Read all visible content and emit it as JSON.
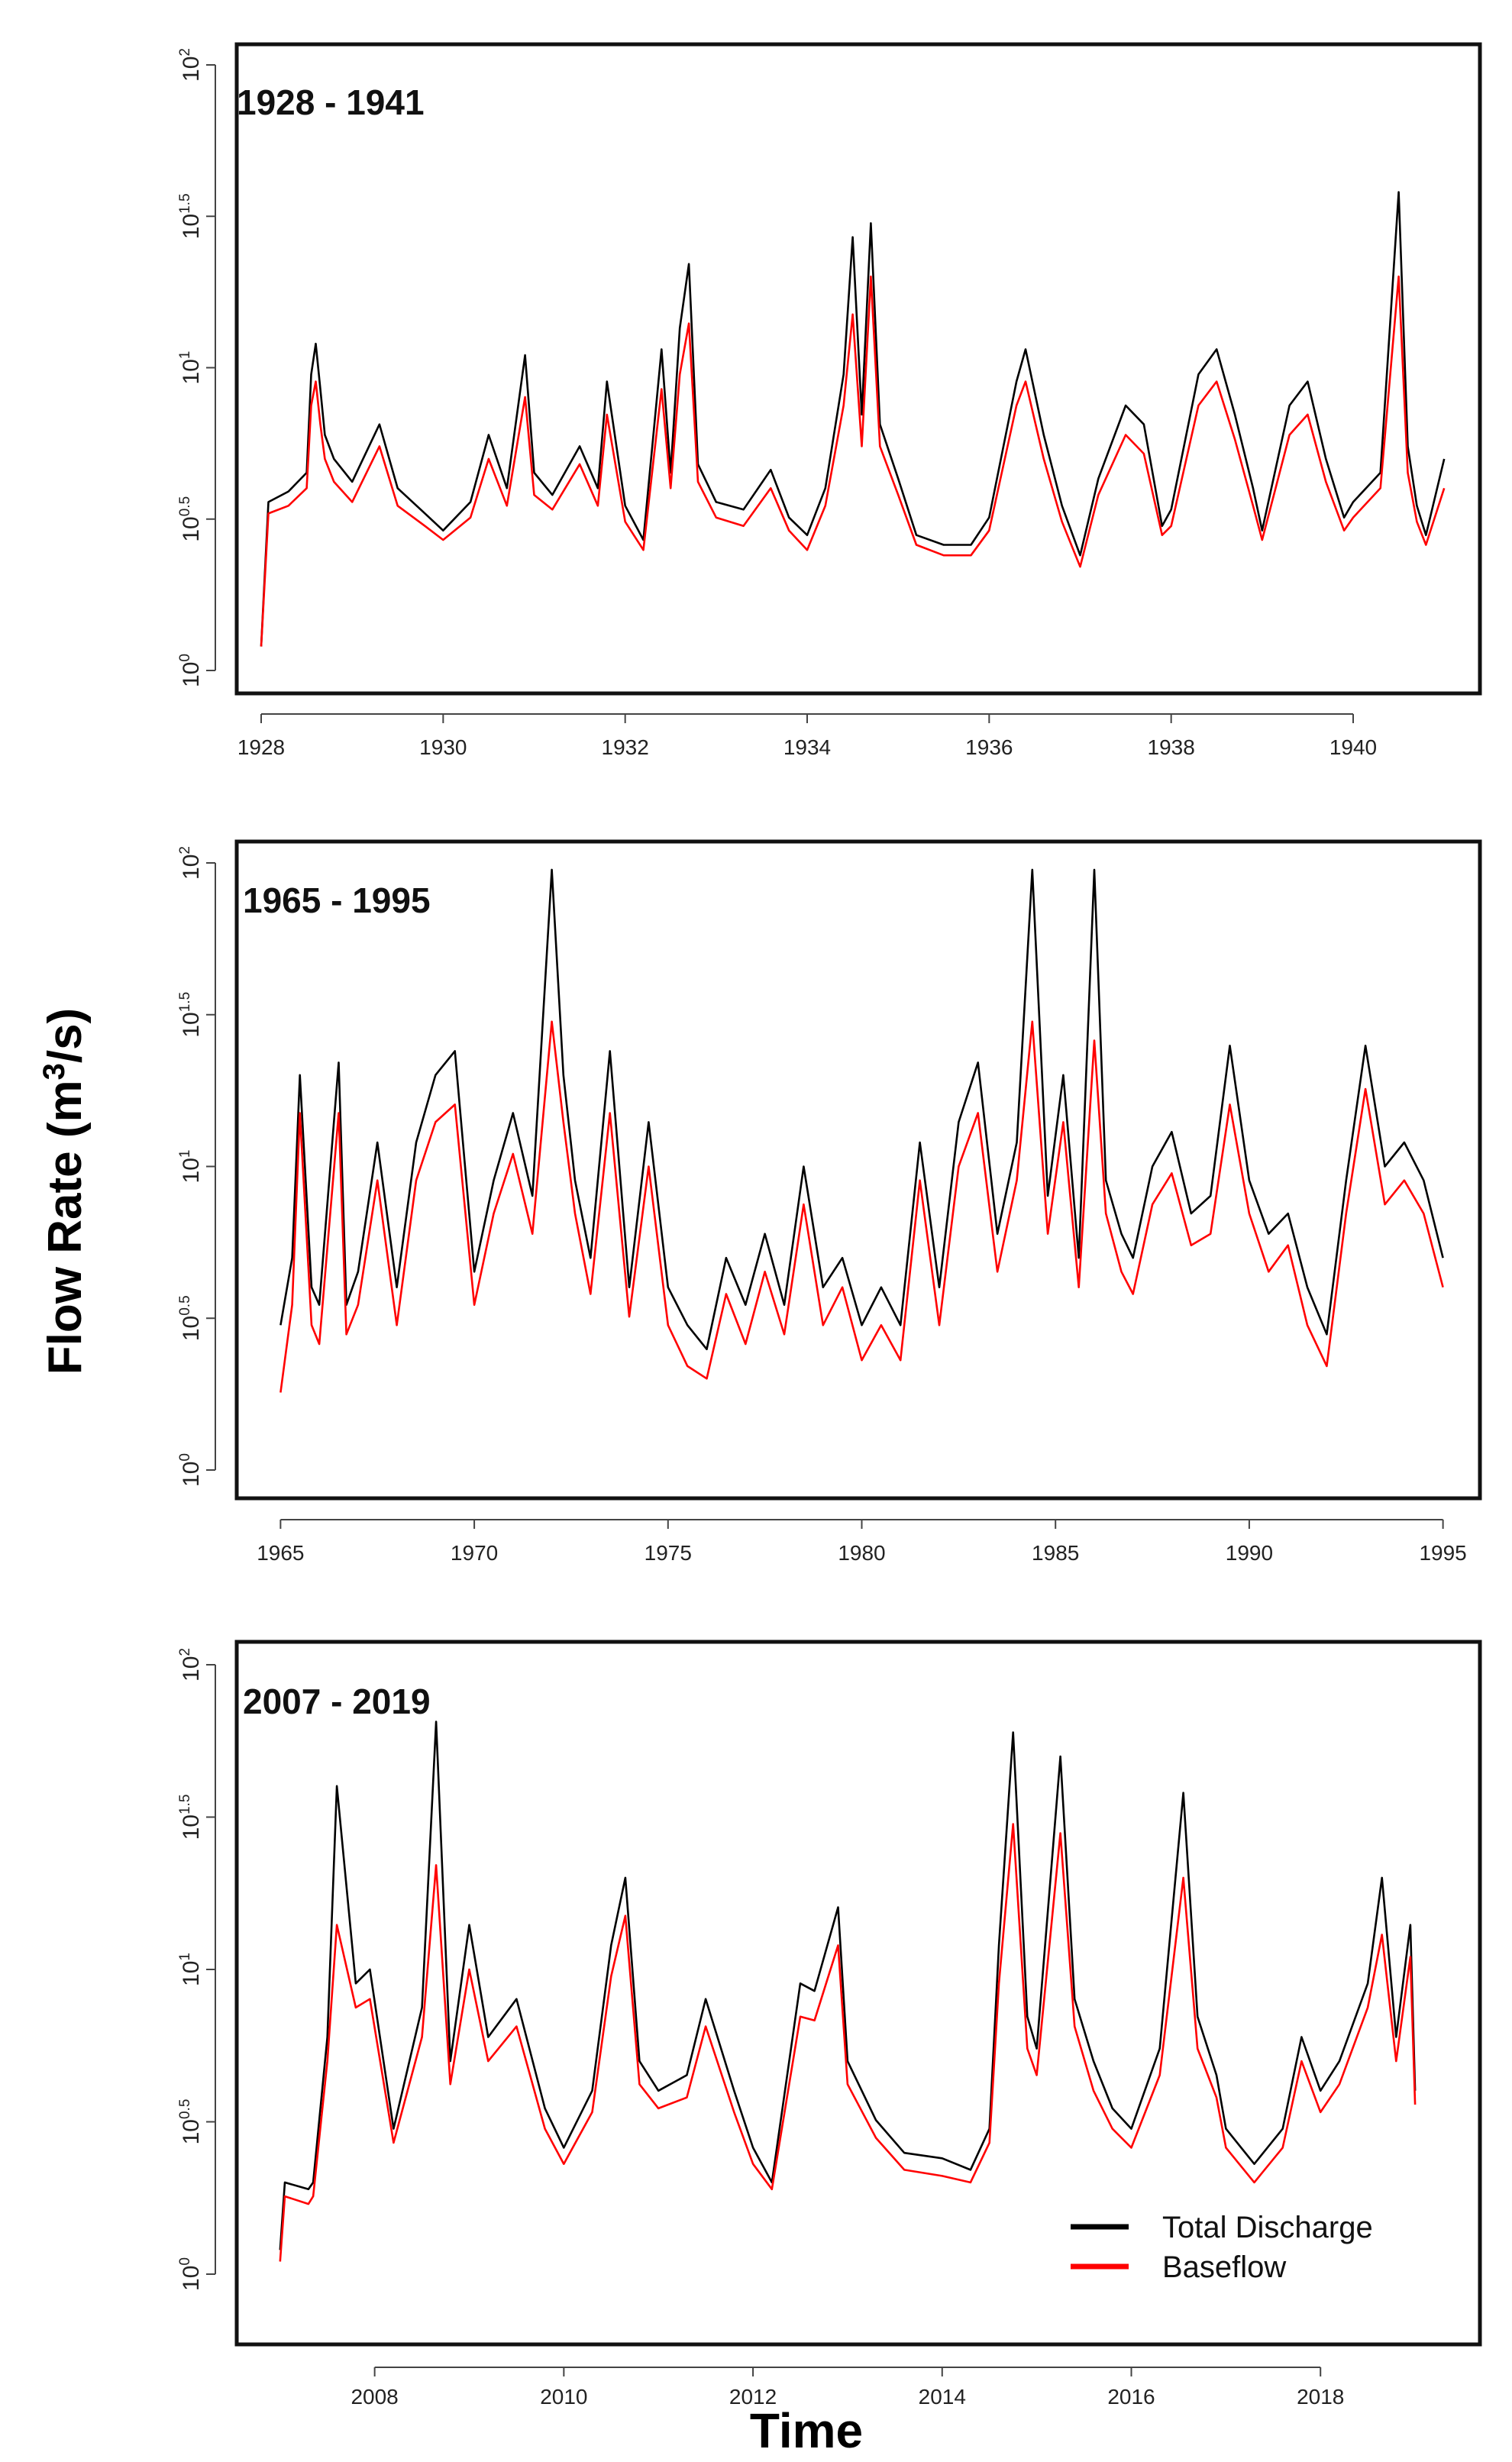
{
  "figure": {
    "ylabel_base": "Flow Rate (m",
    "ylabel_sup": "3",
    "ylabel_tail": "/s)",
    "xlabel": "Time"
  },
  "legend": {
    "items": [
      {
        "label": "Total Discharge",
        "color": "#000000"
      },
      {
        "label": "Baseflow",
        "color": "#ff0000"
      }
    ]
  },
  "chart_data": [
    {
      "type": "line",
      "title": "1928 - 1941",
      "xlabel": "",
      "ylabel": "Flow Rate (m3/s)",
      "yscale": "log10",
      "xlim": [
        1928,
        1941.2
      ],
      "ylim_log10": [
        0,
        2
      ],
      "xticks": [
        1928,
        1930,
        1932,
        1934,
        1936,
        1938,
        1940
      ],
      "yticks": [
        {
          "base": "10",
          "exp": "0"
        },
        {
          "base": "10",
          "exp": "0.5"
        },
        {
          "base": "10",
          "exp": "1"
        },
        {
          "base": "10",
          "exp": "1.5"
        },
        {
          "base": "10",
          "exp": "2"
        }
      ],
      "series": [
        {
          "name": "Total Discharge",
          "color": "#000000",
          "x": [
            1928.0,
            1928.08,
            1928.3,
            1928.5,
            1928.55,
            1928.6,
            1928.65,
            1928.7,
            1928.8,
            1929.0,
            1929.3,
            1929.5,
            1929.8,
            1930.0,
            1930.3,
            1930.5,
            1930.7,
            1930.9,
            1931.0,
            1931.2,
            1931.5,
            1931.7,
            1931.8,
            1932.0,
            1932.2,
            1932.4,
            1932.5,
            1932.6,
            1932.7,
            1932.8,
            1933.0,
            1933.3,
            1933.6,
            1933.8,
            1934.0,
            1934.2,
            1934.4,
            1934.5,
            1934.6,
            1934.7,
            1934.8,
            1935.0,
            1935.2,
            1935.5,
            1935.8,
            1936.0,
            1936.3,
            1936.4,
            1936.6,
            1936.8,
            1937.0,
            1937.2,
            1937.5,
            1937.7,
            1937.9,
            1938.0,
            1938.3,
            1938.5,
            1938.7,
            1938.9,
            1939.0,
            1939.3,
            1939.5,
            1939.7,
            1939.9,
            1940.0,
            1940.3,
            1940.5,
            1940.6,
            1940.7,
            1940.8,
            1941.0
          ],
          "y": [
            1.2,
            3.6,
            3.9,
            4.5,
            9.5,
            12.0,
            8.5,
            6.0,
            5.0,
            4.2,
            6.5,
            4.0,
            3.3,
            2.9,
            3.6,
            6.0,
            4.0,
            11.0,
            4.5,
            3.8,
            5.5,
            4.0,
            9.0,
            3.5,
            2.7,
            11.5,
            4.5,
            13.5,
            22.0,
            4.8,
            3.6,
            3.4,
            4.6,
            3.2,
            2.8,
            4.0,
            9.5,
            27.0,
            7.0,
            30.0,
            6.5,
            4.3,
            2.8,
            2.6,
            2.6,
            3.2,
            9.0,
            11.5,
            6.0,
            3.5,
            2.4,
            4.3,
            7.5,
            6.5,
            3.0,
            3.4,
            9.5,
            11.5,
            7.0,
            4.0,
            2.9,
            7.5,
            9.0,
            5.0,
            3.2,
            3.6,
            4.5,
            38.0,
            5.5,
            3.5,
            2.8,
            5.0
          ]
        },
        {
          "name": "Baseflow",
          "color": "#ff0000",
          "x": [
            1928.0,
            1928.08,
            1928.3,
            1928.5,
            1928.55,
            1928.6,
            1928.65,
            1928.7,
            1928.8,
            1929.0,
            1929.3,
            1929.5,
            1929.8,
            1930.0,
            1930.3,
            1930.5,
            1930.7,
            1930.9,
            1931.0,
            1931.2,
            1931.5,
            1931.7,
            1931.8,
            1932.0,
            1932.2,
            1932.4,
            1932.5,
            1932.6,
            1932.7,
            1932.8,
            1933.0,
            1933.3,
            1933.6,
            1933.8,
            1934.0,
            1934.2,
            1934.4,
            1934.5,
            1934.6,
            1934.7,
            1934.8,
            1935.0,
            1935.2,
            1935.5,
            1935.8,
            1936.0,
            1936.3,
            1936.4,
            1936.6,
            1936.8,
            1937.0,
            1937.2,
            1937.5,
            1937.7,
            1937.9,
            1938.0,
            1938.3,
            1938.5,
            1938.7,
            1938.9,
            1939.0,
            1939.3,
            1939.5,
            1939.7,
            1939.9,
            1940.0,
            1940.3,
            1940.5,
            1940.6,
            1940.7,
            1940.8,
            1941.0
          ],
          "y": [
            1.2,
            3.3,
            3.5,
            4.0,
            7.5,
            9.0,
            6.5,
            5.0,
            4.2,
            3.6,
            5.5,
            3.5,
            3.0,
            2.7,
            3.2,
            5.0,
            3.5,
            8.0,
            3.8,
            3.4,
            4.8,
            3.5,
            7.0,
            3.1,
            2.5,
            8.5,
            4.0,
            9.5,
            14.0,
            4.2,
            3.2,
            3.0,
            4.0,
            2.9,
            2.5,
            3.5,
            7.5,
            15.0,
            5.5,
            20.0,
            5.5,
            3.8,
            2.6,
            2.4,
            2.4,
            2.9,
            7.5,
            9.0,
            5.0,
            3.1,
            2.2,
            3.8,
            6.0,
            5.2,
            2.8,
            3.0,
            7.5,
            9.0,
            5.8,
            3.5,
            2.7,
            6.0,
            7.0,
            4.2,
            2.9,
            3.2,
            4.0,
            20.0,
            4.5,
            3.1,
            2.6,
            4.0
          ]
        }
      ]
    },
    {
      "type": "line",
      "title": "1965 - 1995",
      "xlabel": "",
      "ylabel": "Flow Rate (m3/s)",
      "yscale": "log10",
      "xlim": [
        1964.5,
        1995.5
      ],
      "ylim_log10": [
        0,
        2
      ],
      "xticks": [
        1965,
        1970,
        1975,
        1980,
        1985,
        1990,
        1995
      ],
      "yticks": [
        {
          "base": "10",
          "exp": "0"
        },
        {
          "base": "10",
          "exp": "0.5"
        },
        {
          "base": "10",
          "exp": "1"
        },
        {
          "base": "10",
          "exp": "1.5"
        },
        {
          "base": "10",
          "exp": "2"
        }
      ],
      "series": [
        {
          "name": "Total Discharge",
          "color": "#000000",
          "x": [
            1965.0,
            1965.3,
            1965.5,
            1965.8,
            1966.0,
            1966.5,
            1966.7,
            1967.0,
            1967.5,
            1968.0,
            1968.5,
            1969.0,
            1969.5,
            1970.0,
            1970.5,
            1971.0,
            1971.5,
            1972.0,
            1972.3,
            1972.6,
            1973.0,
            1973.5,
            1974.0,
            1974.5,
            1975.0,
            1975.5,
            1976.0,
            1976.5,
            1977.0,
            1977.5,
            1978.0,
            1978.5,
            1979.0,
            1979.5,
            1980.0,
            1980.5,
            1981.0,
            1981.5,
            1982.0,
            1982.5,
            1983.0,
            1983.5,
            1984.0,
            1984.4,
            1984.8,
            1985.2,
            1985.6,
            1986.0,
            1986.3,
            1986.7,
            1987.0,
            1987.5,
            1988.0,
            1988.5,
            1989.0,
            1989.5,
            1990.0,
            1990.5,
            1991.0,
            1991.5,
            1992.0,
            1992.5,
            1993.0,
            1993.5,
            1994.0,
            1994.5,
            1995.0
          ],
          "y": [
            3.0,
            5.0,
            20.0,
            4.0,
            3.5,
            22.0,
            3.5,
            4.5,
            12.0,
            4.0,
            12.0,
            20.0,
            24.0,
            4.5,
            9.0,
            15.0,
            8.0,
            95.0,
            20.0,
            9.0,
            5.0,
            24.0,
            4.0,
            14.0,
            4.0,
            3.0,
            2.5,
            5.0,
            3.5,
            6.0,
            3.5,
            10.0,
            4.0,
            5.0,
            3.0,
            4.0,
            3.0,
            12.0,
            4.0,
            14.0,
            22.0,
            6.0,
            12.0,
            95.0,
            8.0,
            20.0,
            5.0,
            95.0,
            9.0,
            6.0,
            5.0,
            10.0,
            13.0,
            7.0,
            8.0,
            25.0,
            9.0,
            6.0,
            7.0,
            4.0,
            2.8,
            9.0,
            25.0,
            10.0,
            12.0,
            9.0,
            5.0
          ]
        },
        {
          "name": "Baseflow",
          "color": "#ff0000",
          "x": [
            1965.0,
            1965.3,
            1965.5,
            1965.8,
            1966.0,
            1966.5,
            1966.7,
            1967.0,
            1967.5,
            1968.0,
            1968.5,
            1969.0,
            1969.5,
            1970.0,
            1970.5,
            1971.0,
            1971.5,
            1972.0,
            1972.3,
            1972.6,
            1973.0,
            1973.5,
            1974.0,
            1974.5,
            1975.0,
            1975.5,
            1976.0,
            1976.5,
            1977.0,
            1977.5,
            1978.0,
            1978.5,
            1979.0,
            1979.5,
            1980.0,
            1980.5,
            1981.0,
            1981.5,
            1982.0,
            1982.5,
            1983.0,
            1983.5,
            1984.0,
            1984.4,
            1984.8,
            1985.2,
            1985.6,
            1986.0,
            1986.3,
            1986.7,
            1987.0,
            1987.5,
            1988.0,
            1988.5,
            1989.0,
            1989.5,
            1990.0,
            1990.5,
            1991.0,
            1991.5,
            1992.0,
            1992.5,
            1993.0,
            1993.5,
            1994.0,
            1994.5,
            1995.0
          ],
          "y": [
            1.8,
            3.5,
            15.0,
            3.0,
            2.6,
            15.0,
            2.8,
            3.5,
            9.0,
            3.0,
            9.0,
            14.0,
            16.0,
            3.5,
            7.0,
            11.0,
            6.0,
            30.0,
            14.0,
            7.0,
            3.8,
            15.0,
            3.2,
            10.0,
            3.0,
            2.2,
            2.0,
            3.8,
            2.6,
            4.5,
            2.8,
            7.5,
            3.0,
            4.0,
            2.3,
            3.0,
            2.3,
            9.0,
            3.0,
            10.0,
            15.0,
            4.5,
            9.0,
            30.0,
            6.0,
            14.0,
            4.0,
            26.0,
            7.0,
            4.5,
            3.8,
            7.5,
            9.5,
            5.5,
            6.0,
            16.0,
            7.0,
            4.5,
            5.5,
            3.0,
            2.2,
            7.0,
            18.0,
            7.5,
            9.0,
            7.0,
            4.0
          ]
        }
      ]
    },
    {
      "type": "line",
      "title": "2007 - 2019",
      "xlabel": "",
      "ylabel": "Flow Rate (m3/s)",
      "yscale": "log10",
      "xlim": [
        2006.8,
        2019.5
      ],
      "ylim_log10": [
        0,
        2
      ],
      "xticks": [
        2008,
        2010,
        2012,
        2014,
        2016,
        2018
      ],
      "yticks": [
        {
          "base": "10",
          "exp": "0"
        },
        {
          "base": "10",
          "exp": "0.5"
        },
        {
          "base": "10",
          "exp": "1"
        },
        {
          "base": "10",
          "exp": "1.5"
        },
        {
          "base": "10",
          "exp": "2"
        }
      ],
      "series": [
        {
          "name": "Total Discharge",
          "color": "#000000",
          "x": [
            2007.0,
            2007.05,
            2007.3,
            2007.35,
            2007.5,
            2007.6,
            2007.8,
            2007.95,
            2008.2,
            2008.5,
            2008.65,
            2008.8,
            2009.0,
            2009.2,
            2009.5,
            2009.8,
            2010.0,
            2010.3,
            2010.5,
            2010.65,
            2010.8,
            2011.0,
            2011.3,
            2011.5,
            2011.8,
            2012.0,
            2012.2,
            2012.5,
            2012.65,
            2012.9,
            2013.0,
            2013.3,
            2013.6,
            2014.0,
            2014.3,
            2014.5,
            2014.6,
            2014.75,
            2014.9,
            2015.0,
            2015.25,
            2015.4,
            2015.6,
            2015.8,
            2016.0,
            2016.3,
            2016.55,
            2016.7,
            2016.9,
            2017.0,
            2017.3,
            2017.6,
            2017.8,
            2018.0,
            2018.2,
            2018.5,
            2018.65,
            2018.8,
            2018.95,
            2019.0
          ],
          "y": [
            1.2,
            2.0,
            1.9,
            2.0,
            6.0,
            40.0,
            9.0,
            10.0,
            3.0,
            7.5,
            65.0,
            5.0,
            14.0,
            6.0,
            8.0,
            3.5,
            2.6,
            4.0,
            12.0,
            20.0,
            5.0,
            4.0,
            4.5,
            8.0,
            4.0,
            2.6,
            2.0,
            9.0,
            8.5,
            16.0,
            5.0,
            3.2,
            2.5,
            2.4,
            2.2,
            3.0,
            12.0,
            60.0,
            7.0,
            5.5,
            50.0,
            8.0,
            5.0,
            3.5,
            3.0,
            5.5,
            38.0,
            7.0,
            4.5,
            3.0,
            2.3,
            3.0,
            6.0,
            4.0,
            5.0,
            9.0,
            20.0,
            6.0,
            14.0,
            4.0
          ]
        },
        {
          "name": "Baseflow",
          "color": "#ff0000",
          "x": [
            2007.0,
            2007.05,
            2007.3,
            2007.35,
            2007.5,
            2007.6,
            2007.8,
            2007.95,
            2008.2,
            2008.5,
            2008.65,
            2008.8,
            2009.0,
            2009.2,
            2009.5,
            2009.8,
            2010.0,
            2010.3,
            2010.5,
            2010.65,
            2010.8,
            2011.0,
            2011.3,
            2011.5,
            2011.8,
            2012.0,
            2012.2,
            2012.5,
            2012.65,
            2012.9,
            2013.0,
            2013.3,
            2013.6,
            2014.0,
            2014.3,
            2014.5,
            2014.6,
            2014.75,
            2014.9,
            2015.0,
            2015.25,
            2015.4,
            2015.6,
            2015.8,
            2016.0,
            2016.3,
            2016.55,
            2016.7,
            2016.9,
            2017.0,
            2017.3,
            2017.6,
            2017.8,
            2018.0,
            2018.2,
            2018.5,
            2018.65,
            2018.8,
            2018.95,
            2019.0
          ],
          "y": [
            1.1,
            1.8,
            1.7,
            1.8,
            5.0,
            14.0,
            7.5,
            8.0,
            2.7,
            6.0,
            22.0,
            4.2,
            10.0,
            5.0,
            6.5,
            3.0,
            2.3,
            3.4,
            9.5,
            15.0,
            4.2,
            3.5,
            3.8,
            6.5,
            3.4,
            2.3,
            1.9,
            7.0,
            6.8,
            12.0,
            4.2,
            2.8,
            2.2,
            2.1,
            2.0,
            2.7,
            9.0,
            30.0,
            5.5,
            4.5,
            28.0,
            6.5,
            4.0,
            3.0,
            2.6,
            4.5,
            20.0,
            5.5,
            3.8,
            2.6,
            2.0,
            2.6,
            5.0,
            3.4,
            4.2,
            7.5,
            13.0,
            5.0,
            11.0,
            3.6
          ]
        }
      ]
    }
  ]
}
